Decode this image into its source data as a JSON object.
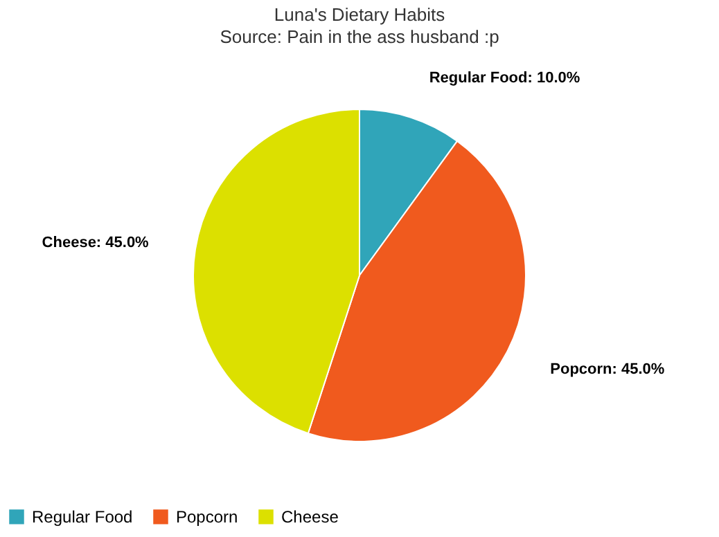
{
  "chart_data": {
    "type": "pie",
    "title": "Luna's Dietary Habits",
    "subtitle": "Source: Pain in the ass husband :p",
    "categories": [
      "Regular Food",
      "Popcorn",
      "Cheese"
    ],
    "values": [
      10,
      45,
      45
    ],
    "colors": [
      "#30a5b9",
      "#f05a1e",
      "#dce000"
    ],
    "value_labels": [
      "Regular Food: 10.0%",
      "Popcorn: 45.0%",
      "Cheese: 45.0%"
    ],
    "legend": "bottom"
  }
}
